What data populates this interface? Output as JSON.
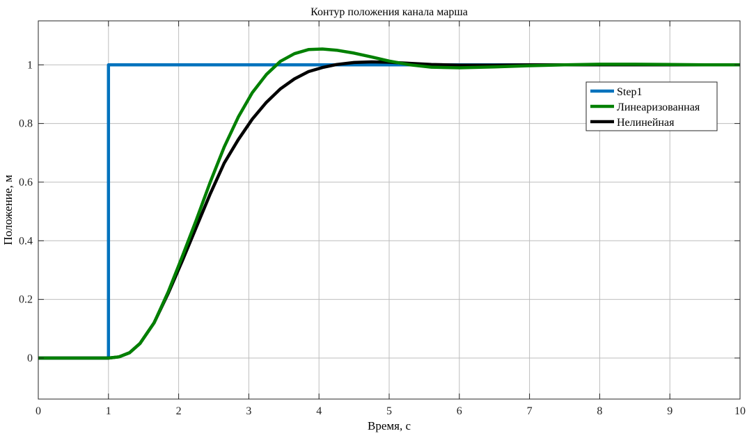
{
  "chart_data": {
    "type": "line",
    "title": "Контур положения канала марша",
    "xlabel": "Время, с",
    "ylabel": "Положение, м",
    "xlim": [
      0,
      10
    ],
    "ylim": [
      -0.14,
      1.15
    ],
    "xticks": [
      0,
      1,
      2,
      3,
      4,
      5,
      6,
      7,
      8,
      9,
      10
    ],
    "xtick_labels": [
      "0",
      "1",
      "2",
      "3",
      "4",
      "5",
      "6",
      "7",
      "8",
      "9",
      "10"
    ],
    "yticks": [
      0,
      0.2,
      0.4,
      0.6,
      0.8,
      1
    ],
    "ytick_labels": [
      "0",
      "0.2",
      "0.4",
      "0.6",
      "0.8",
      "1"
    ],
    "grid": true,
    "legend_position": "top-right",
    "series": [
      {
        "name": "Step1",
        "color": "#0072BD",
        "x": [
          0,
          1,
          1,
          10
        ],
        "y": [
          0,
          0,
          1,
          1
        ]
      },
      {
        "name": "Линеаризованная",
        "color": "#008000",
        "x": [
          0,
          1,
          1.15,
          1.3,
          1.45,
          1.65,
          1.85,
          2.05,
          2.25,
          2.45,
          2.65,
          2.85,
          3.05,
          3.25,
          3.45,
          3.65,
          3.85,
          4.05,
          4.25,
          4.5,
          4.75,
          5.0,
          5.3,
          5.6,
          6.0,
          6.5,
          7.0,
          7.5,
          8.0,
          8.5,
          9.0,
          9.5,
          10.0
        ],
        "y": [
          0,
          0,
          0.004,
          0.018,
          0.05,
          0.12,
          0.225,
          0.345,
          0.47,
          0.6,
          0.72,
          0.822,
          0.905,
          0.967,
          1.012,
          1.038,
          1.052,
          1.054,
          1.05,
          1.04,
          1.027,
          1.013,
          1.0,
          0.992,
          0.99,
          0.993,
          0.997,
          1.0,
          1.002,
          1.002,
          1.001,
          1.0,
          1.0
        ]
      },
      {
        "name": "Нелинейная",
        "color": "#000000",
        "x": [
          0,
          1,
          1.15,
          1.3,
          1.45,
          1.65,
          1.85,
          2.05,
          2.25,
          2.45,
          2.65,
          2.85,
          3.05,
          3.25,
          3.45,
          3.65,
          3.85,
          4.05,
          4.25,
          4.5,
          4.75,
          5.0,
          5.3,
          5.6,
          6.0,
          6.5,
          7.0,
          7.5,
          8.0,
          8.5,
          9.0,
          9.5,
          10.0
        ],
        "y": [
          0,
          0,
          0.004,
          0.018,
          0.05,
          0.12,
          0.22,
          0.33,
          0.445,
          0.56,
          0.665,
          0.745,
          0.815,
          0.872,
          0.918,
          0.952,
          0.977,
          0.991,
          1.001,
          1.008,
          1.01,
          1.009,
          1.005,
          1.001,
          0.999,
          0.999,
          1.0,
          1.0,
          1.0,
          1.0,
          1.0,
          1.0,
          1.0
        ]
      }
    ]
  }
}
